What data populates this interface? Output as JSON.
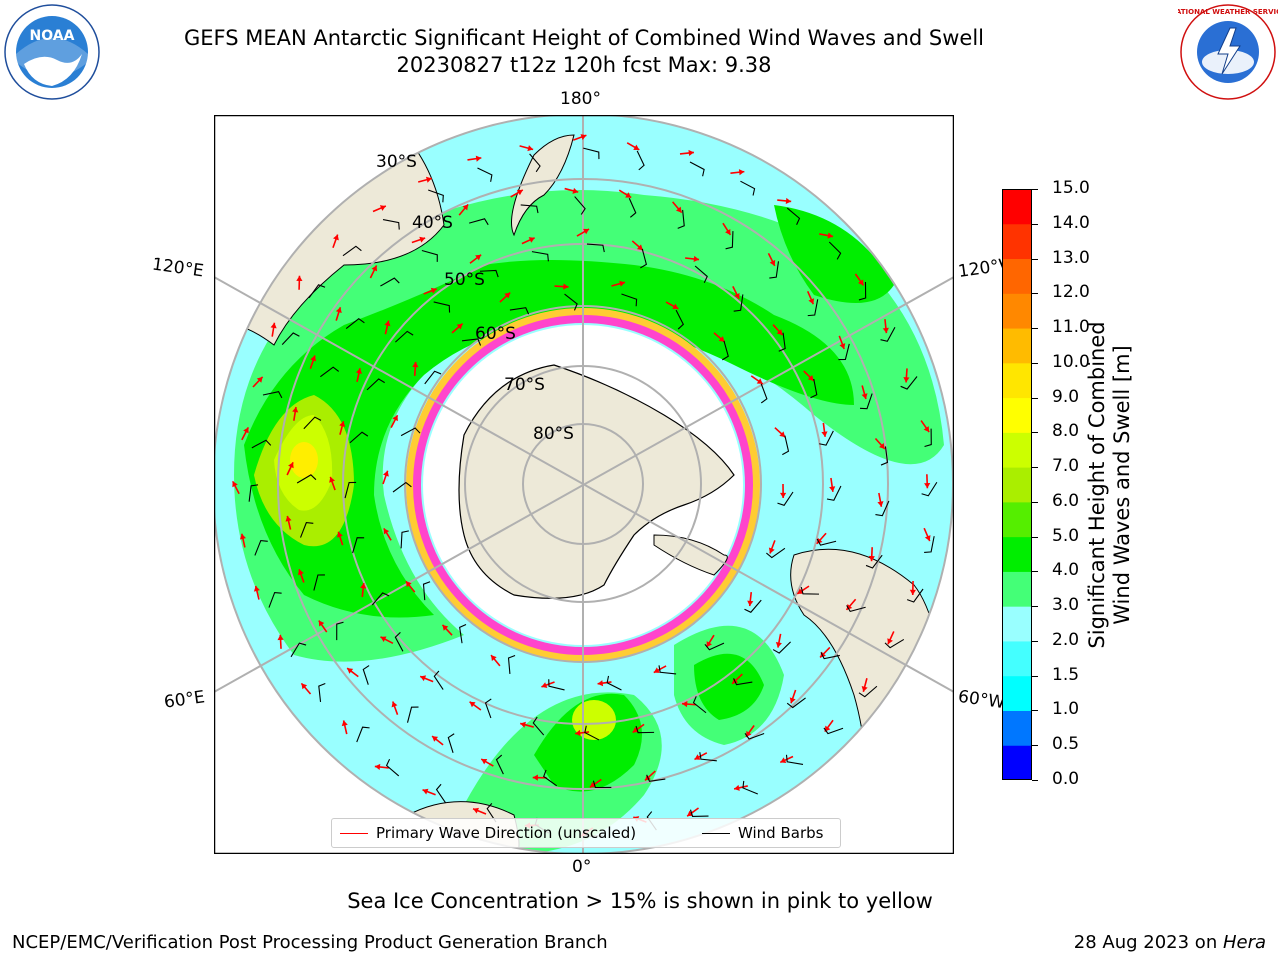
{
  "title": {
    "line1": "GEFS MEAN Antarctic Significant Height of Combined Wind Waves and Swell",
    "line2": "20230827 t12z 120h fcst   Max: 9.38"
  },
  "logos": {
    "noaa": "NOAA",
    "nws": "NATIONAL WEATHER SERVICE"
  },
  "map": {
    "projection": "south-polar-stereographic",
    "longitude_labels": {
      "top": "180°",
      "bottom": "0°",
      "left_upper": "120°E",
      "left_lower": "60°E",
      "right_upper": "120°W",
      "right_lower": "60°W"
    },
    "latitude_labels": [
      "30°S",
      "40°S",
      "50°S",
      "60°S",
      "70°S",
      "80°S"
    ],
    "colors": {
      "land": "#ede9d8",
      "ice_pink": "#ff44cc",
      "ice_yellow": "#ffcc33",
      "arrow": "#ff0000",
      "barb": "#000000",
      "grid": "#b0b0b0"
    }
  },
  "legend": {
    "primary_wave": "Primary Wave Direction (unscaled)",
    "wind_barbs": "Wind Barbs"
  },
  "colorbar": {
    "title_line1": "Significant Height of Combined",
    "title_line2": "Wind Waves and Swell [m]",
    "ticks": [
      "0.0",
      "0.5",
      "1.0",
      "1.5",
      "2.0",
      "3.0",
      "4.0",
      "5.0",
      "6.0",
      "7.0",
      "8.0",
      "9.0",
      "10.0",
      "11.0",
      "12.0",
      "13.0",
      "14.0",
      "15.0"
    ],
    "colors": [
      "#0000ff",
      "#0077ff",
      "#00ffff",
      "#44ffff",
      "#99ffff",
      "#44ff77",
      "#00ee00",
      "#55ee00",
      "#aaee00",
      "#ccff00",
      "#ffff00",
      "#ffe600",
      "#ffbb00",
      "#ff8800",
      "#ff6600",
      "#ff3300",
      "#ff0000"
    ]
  },
  "note": "Sea Ice Concentration > 15% is shown in pink to yellow",
  "footer": {
    "credit": "NCEP/EMC/Verification Post Processing Product Generation Branch",
    "date": "28 Aug 2023 on ",
    "host": "Hera"
  }
}
